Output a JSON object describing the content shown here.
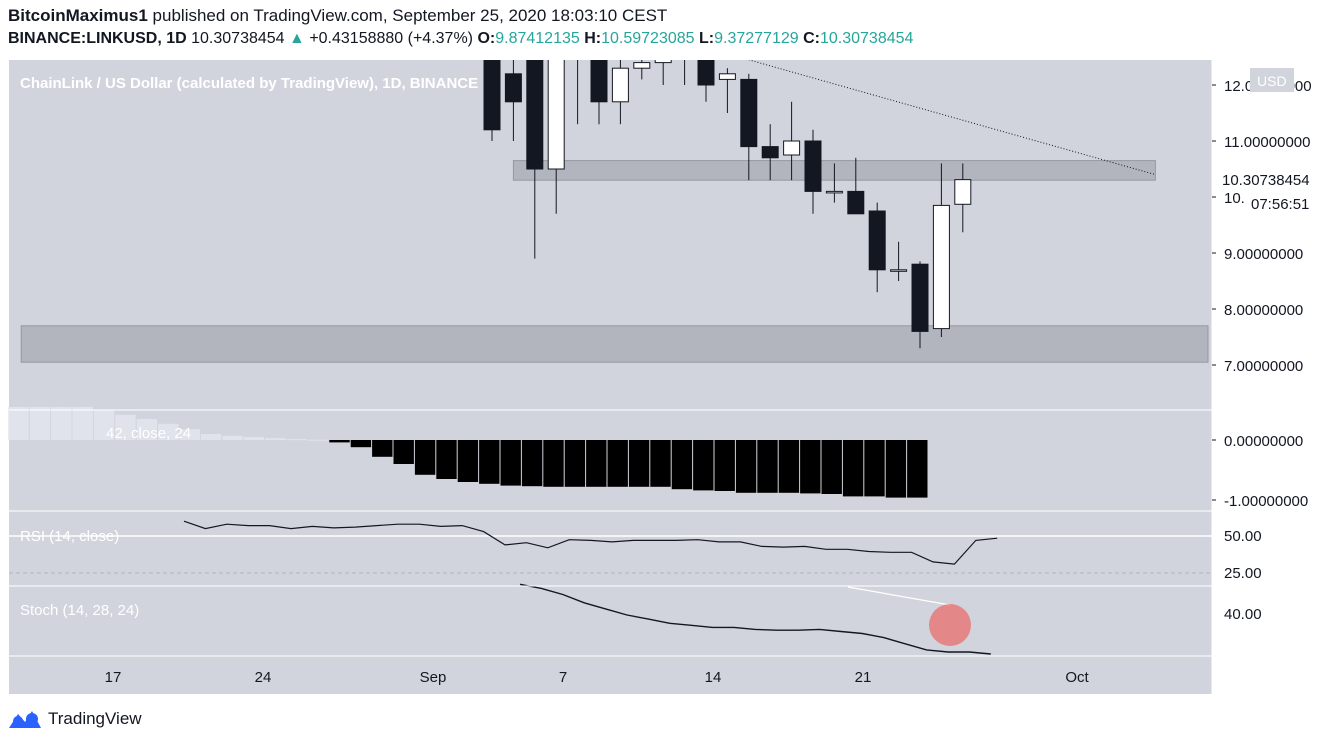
{
  "header": {
    "author": "BitcoinMaximus1",
    "published": "published on TradingView.com, September 25, 2020 18:03:10 CEST",
    "symbol": "BINANCE:LINKUSD, 1D",
    "last": "10.30738454",
    "change": "+0.43158880 (+4.37%)",
    "open_label": "O:",
    "open": "9.87412135",
    "high_label": "H:",
    "high": "10.59723085",
    "low_label": "L:",
    "low": "9.37277129",
    "close_label": "C:",
    "close": "10.30738454"
  },
  "footer": {
    "brand": "TradingView"
  },
  "colors": {
    "background": "#d1d4dc",
    "bull": "#ffffff",
    "bear": "#131722",
    "zone": "#b2b5be",
    "highlight": "#ef5350"
  },
  "chart_data": [
    {
      "type": "candlestick",
      "title": "ChainLink / US Dollar (calculated by TradingView), 1D, BINANCE",
      "currency_label": "USD",
      "y_ticks": [
        7,
        8,
        9,
        10,
        11,
        12
      ],
      "y_tick_labels": [
        "7.00000000",
        "8.00000000",
        "9.00000000",
        "10.00000000",
        "11.00000000",
        "12.00000000"
      ],
      "ylim": [
        6.2,
        12.5
      ],
      "last_price_label": "10.30738454",
      "countdown_label": "07:56:51",
      "x_tick_labels": [
        "17",
        "24",
        "Sep",
        "7",
        "14",
        "21",
        "Oct"
      ],
      "candles": [
        {
          "date": "2020-09-03",
          "o": 12.5,
          "h": 12.5,
          "l": 11.0,
          "c": 11.2
        },
        {
          "date": "2020-09-04",
          "o": 12.2,
          "h": 12.5,
          "l": 11.0,
          "c": 11.7
        },
        {
          "date": "2020-09-05",
          "o": 12.5,
          "h": 12.5,
          "l": 8.9,
          "c": 10.5
        },
        {
          "date": "2020-09-06",
          "o": 10.5,
          "h": 12.5,
          "l": 9.7,
          "c": 12.5
        },
        {
          "date": "2020-09-07",
          "o": 12.5,
          "h": 12.5,
          "l": 11.3,
          "c": 12.5
        },
        {
          "date": "2020-09-08",
          "o": 12.5,
          "h": 12.5,
          "l": 11.3,
          "c": 11.7
        },
        {
          "date": "2020-09-09",
          "o": 11.7,
          "h": 12.5,
          "l": 11.3,
          "c": 12.3
        },
        {
          "date": "2020-09-10",
          "o": 12.3,
          "h": 12.5,
          "l": 12.1,
          "c": 12.4
        },
        {
          "date": "2020-09-11",
          "o": 12.4,
          "h": 12.5,
          "l": 12.0,
          "c": 12.5
        },
        {
          "date": "2020-09-12",
          "o": 12.5,
          "h": 12.5,
          "l": 12.0,
          "c": 12.5
        },
        {
          "date": "2020-09-13",
          "o": 12.5,
          "h": 12.5,
          "l": 11.7,
          "c": 12.0
        },
        {
          "date": "2020-09-14",
          "o": 12.1,
          "h": 12.3,
          "l": 11.5,
          "c": 12.2
        },
        {
          "date": "2020-09-15",
          "o": 12.1,
          "h": 12.2,
          "l": 10.3,
          "c": 10.9
        },
        {
          "date": "2020-09-16",
          "o": 10.9,
          "h": 11.3,
          "l": 10.3,
          "c": 10.7
        },
        {
          "date": "2020-09-17",
          "o": 10.75,
          "h": 11.7,
          "l": 10.3,
          "c": 11.0
        },
        {
          "date": "2020-09-18",
          "o": 11.0,
          "h": 11.2,
          "l": 9.7,
          "c": 10.1
        },
        {
          "date": "2020-09-19",
          "o": 10.1,
          "h": 10.6,
          "l": 9.9,
          "c": 10.1
        },
        {
          "date": "2020-09-20",
          "o": 10.1,
          "h": 10.7,
          "l": 9.7,
          "c": 9.7
        },
        {
          "date": "2020-09-21",
          "o": 9.75,
          "h": 9.9,
          "l": 8.3,
          "c": 8.7
        },
        {
          "date": "2020-09-22",
          "o": 8.7,
          "h": 9.2,
          "l": 8.5,
          "c": 8.7
        },
        {
          "date": "2020-09-23",
          "o": 8.8,
          "h": 8.85,
          "l": 7.3,
          "c": 7.6
        },
        {
          "date": "2020-09-24",
          "o": 7.65,
          "h": 10.6,
          "l": 7.5,
          "c": 9.85
        },
        {
          "date": "2020-09-25",
          "o": 9.87,
          "h": 10.6,
          "l": 9.37,
          "c": 10.31
        }
      ],
      "zones": [
        {
          "from_date": "2020-09-04",
          "to_date": "2020-10-04",
          "low": 10.3,
          "high": 10.65
        },
        {
          "from_date": "2020-08-12",
          "to_date": "2020-10-10",
          "low": 7.05,
          "high": 7.7
        }
      ],
      "trendline": {
        "from_date": "2020-09-15",
        "from_value": 12.45,
        "to_date": "2020-10-04",
        "to_value": 10.4
      }
    },
    {
      "type": "histogram",
      "name": "42, close, 24",
      "y_tick_labels": [
        "0.00000000",
        "-1.00000000"
      ],
      "ylim": [
        -1.15,
        0.55
      ],
      "values": [
        0.55,
        0.55,
        0.55,
        0.55,
        0.5,
        0.42,
        0.35,
        0.27,
        0.18,
        0.1,
        0.07,
        0.05,
        0.03,
        0.015,
        0.005,
        -0.04,
        -0.12,
        -0.28,
        -0.4,
        -0.58,
        -0.65,
        -0.7,
        -0.73,
        -0.76,
        -0.77,
        -0.78,
        -0.78,
        -0.78,
        -0.78,
        -0.78,
        -0.78,
        -0.82,
        -0.84,
        -0.85,
        -0.88,
        -0.88,
        -0.88,
        -0.89,
        -0.9,
        -0.94,
        -0.94,
        -0.96,
        -0.96
      ]
    },
    {
      "type": "line",
      "name": "RSI (14, close)",
      "y_tick_labels": [
        "50.00",
        "25.00"
      ],
      "ylim": [
        20,
        65
      ],
      "levels": [
        50,
        25
      ],
      "values": [
        60,
        55,
        58,
        57,
        57,
        55,
        56.5,
        55.5,
        56,
        57,
        58,
        58,
        56.5,
        57,
        53,
        44,
        45.5,
        42,
        47.5,
        47,
        46,
        47,
        47,
        47,
        47.5,
        46,
        46,
        43,
        42.5,
        43,
        41,
        41,
        39.5,
        39,
        39,
        32.5,
        31,
        47,
        48.5
      ]
    },
    {
      "type": "line",
      "name": "Stoch (14, 28, 24)",
      "y_tick_labels": [
        "40.00"
      ],
      "ylim": [
        25,
        47
      ],
      "values": [
        47,
        46,
        44.5,
        42.5,
        41,
        39.5,
        38.5,
        37.5,
        37,
        36.5,
        36.5,
        36,
        35.8,
        35.8,
        36,
        35.5,
        35,
        34,
        32.5,
        31,
        30.5,
        30.5,
        30
      ]
    }
  ]
}
